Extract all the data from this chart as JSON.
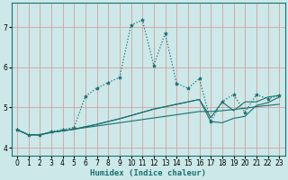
{
  "xlabel": "Humidex (Indice chaleur)",
  "bg_color": "#cce8e8",
  "grid_color": "#d4a0a0",
  "line_color": "#1a7070",
  "xlim": [
    -0.5,
    23.5
  ],
  "ylim": [
    3.8,
    7.6
  ],
  "xticks": [
    0,
    1,
    2,
    3,
    4,
    5,
    6,
    7,
    8,
    9,
    10,
    11,
    12,
    13,
    14,
    15,
    16,
    17,
    18,
    19,
    20,
    21,
    22,
    23
  ],
  "yticks": [
    4,
    5,
    6,
    7
  ],
  "series": [
    {
      "x": [
        0,
        1,
        2,
        3,
        4,
        5,
        6,
        7,
        8,
        9,
        10,
        11,
        12,
        13,
        14,
        15,
        16,
        17,
        18,
        19,
        20,
        21,
        22,
        23
      ],
      "y": [
        4.45,
        4.32,
        4.32,
        4.38,
        4.42,
        4.46,
        4.5,
        4.54,
        4.58,
        4.62,
        4.66,
        4.7,
        4.74,
        4.78,
        4.82,
        4.86,
        4.9,
        4.9,
        4.92,
        4.95,
        4.98,
        5.02,
        5.05,
        5.08
      ],
      "marker": null,
      "linestyle": "-",
      "lw": 0.8
    },
    {
      "x": [
        0,
        1,
        2,
        3,
        4,
        5,
        6,
        7,
        8,
        9,
        10,
        11,
        12,
        13,
        14,
        15,
        16,
        17,
        18,
        19,
        20,
        21,
        22,
        23
      ],
      "y": [
        4.45,
        4.32,
        4.32,
        4.38,
        4.42,
        4.46,
        4.52,
        4.58,
        4.65,
        4.72,
        4.8,
        4.88,
        4.96,
        5.02,
        5.08,
        5.14,
        5.2,
        4.65,
        4.62,
        4.73,
        4.78,
        5.05,
        5.12,
        5.26
      ],
      "marker": null,
      "linestyle": "-",
      "lw": 0.8
    },
    {
      "x": [
        0,
        1,
        2,
        3,
        4,
        5,
        6,
        7,
        8,
        9,
        10,
        11,
        12,
        13,
        14,
        15,
        16,
        17,
        18,
        19,
        20,
        21,
        22,
        23
      ],
      "y": [
        4.45,
        4.32,
        4.32,
        4.38,
        4.42,
        4.46,
        4.52,
        4.58,
        4.65,
        4.72,
        4.8,
        4.88,
        4.96,
        5.02,
        5.08,
        5.14,
        5.2,
        4.75,
        5.14,
        4.92,
        5.14,
        5.14,
        5.26,
        5.3
      ],
      "marker": null,
      "linestyle": "-",
      "lw": 0.8
    },
    {
      "x": [
        0,
        1,
        2,
        3,
        4,
        5,
        6,
        7,
        8,
        9,
        10,
        11,
        12,
        13,
        14,
        15,
        16,
        17,
        18,
        19,
        20,
        21,
        22,
        23
      ],
      "y": [
        4.45,
        4.32,
        4.32,
        4.4,
        4.45,
        4.5,
        5.28,
        5.48,
        5.62,
        5.75,
        7.05,
        7.18,
        6.05,
        6.85,
        5.6,
        5.48,
        5.72,
        4.65,
        5.15,
        5.32,
        4.88,
        5.32,
        5.22,
        5.3
      ],
      "marker": "*",
      "linestyle": ":",
      "lw": 0.9
    }
  ]
}
